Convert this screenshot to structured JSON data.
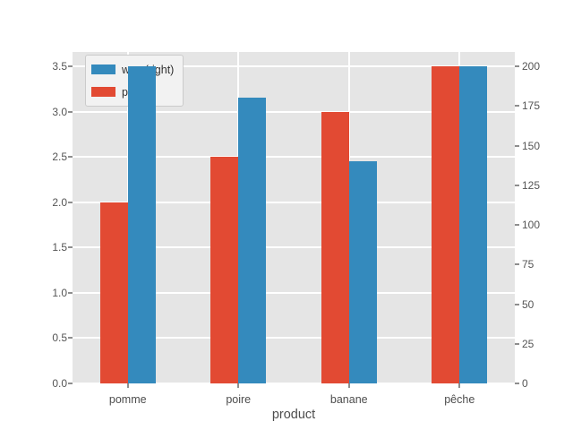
{
  "chart_data": {
    "type": "bar",
    "title": "",
    "categories": [
      "pomme",
      "poire",
      "banane",
      "pêche"
    ],
    "series": [
      {
        "name": "prix",
        "axis": "left",
        "color": "#E24A33",
        "values": [
          2.0,
          2.5,
          3.0,
          3.5
        ]
      },
      {
        "name": "wnv",
        "axis": "right",
        "color": "#348ABD",
        "values": [
          200,
          180,
          140,
          200
        ]
      }
    ],
    "xlabel": "product",
    "left_axis": {
      "min": 0,
      "max": 3.5,
      "ticks": [
        "0.0",
        "0.5",
        "1.0",
        "1.5",
        "2.0",
        "2.5",
        "3.0",
        "3.5"
      ]
    },
    "right_axis": {
      "min": 0,
      "max": 200,
      "ticks": [
        "0",
        "25",
        "50",
        "75",
        "100",
        "125",
        "150",
        "175",
        "200"
      ]
    },
    "legend": {
      "position": "upper left",
      "entries": [
        {
          "label": "wnv (right)",
          "color": "#348ABD"
        },
        {
          "label": "prix",
          "color": "#E24A33"
        }
      ]
    },
    "grid": true,
    "style": "ggplot",
    "colors": {
      "figure_bg": "#FFFFFF",
      "axes_bg": "#E5E5E5",
      "grid": "#FFFFFF",
      "tick_label": "#555555",
      "axis_label": "#4D4D4D",
      "tick_mark": "#8E8E8E",
      "legend_bg": "#F2F2F2",
      "legend_border": "#CBCBCB",
      "legend_text": "#303030"
    }
  }
}
